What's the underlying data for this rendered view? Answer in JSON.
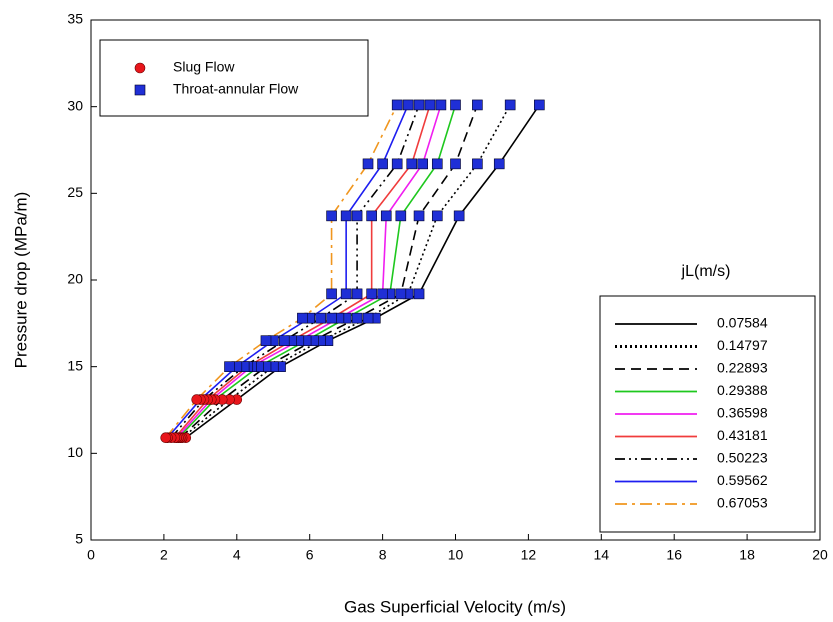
{
  "chart_data": {
    "type": "line",
    "x_label": "Gas Superficial Velocity (m/s)",
    "y_label": "Pressure drop (MPa/m)",
    "xlim": [
      0,
      20
    ],
    "xticks": [
      0,
      2,
      4,
      6,
      8,
      10,
      12,
      14,
      16,
      18,
      20
    ],
    "ylim": [
      5,
      35
    ],
    "yticks": [
      5,
      10,
      15,
      20,
      25,
      30,
      35
    ],
    "y": [
      10.9,
      13.1,
      15.0,
      16.5,
      17.8,
      19.2,
      23.7,
      26.7,
      30.1
    ],
    "markers": [
      {
        "name": "Slug Flow",
        "shape": "circle",
        "color": "#e8161b",
        "points": [
          0,
          1
        ]
      },
      {
        "name": "Throat-annular Flow",
        "shape": "square",
        "color": "#1f2fd6",
        "points": [
          2,
          3,
          4,
          5,
          6,
          7,
          8
        ]
      }
    ],
    "legend_title": "jL(m/s)",
    "series": [
      {
        "name": "0.07584",
        "color": "#000000",
        "dash": "solid",
        "values": [
          2.6,
          4.0,
          5.2,
          6.5,
          7.8,
          9.0,
          10.1,
          11.2,
          12.3
        ]
      },
      {
        "name": "0.14797",
        "color": "#000000",
        "dash": "dotted",
        "values": [
          2.5,
          3.8,
          5.0,
          6.3,
          7.6,
          8.7,
          9.5,
          10.6,
          11.5
        ]
      },
      {
        "name": "0.22893",
        "color": "#000000",
        "dash": "dashed",
        "values": [
          2.45,
          3.6,
          4.8,
          6.1,
          7.3,
          8.5,
          9.0,
          10.0,
          10.6
        ]
      },
      {
        "name": "0.29388",
        "color": "#1ec81e",
        "dash": "solid",
        "values": [
          2.4,
          3.4,
          4.6,
          5.9,
          7.0,
          8.2,
          8.5,
          9.5,
          10.0
        ]
      },
      {
        "name": "0.36598",
        "color": "#f01ef0",
        "dash": "solid",
        "values": [
          2.35,
          3.3,
          4.4,
          5.7,
          6.8,
          8.0,
          8.1,
          9.1,
          9.6
        ]
      },
      {
        "name": "0.43181",
        "color": "#f03c3c",
        "dash": "solid",
        "values": [
          2.3,
          3.2,
          4.3,
          5.5,
          6.6,
          7.7,
          7.7,
          8.8,
          9.3
        ]
      },
      {
        "name": "0.50223",
        "color": "#000000",
        "dash": "dashdotdot",
        "values": [
          2.2,
          3.1,
          4.2,
          5.3,
          6.3,
          7.3,
          7.3,
          8.4,
          9.0
        ]
      },
      {
        "name": "0.59562",
        "color": "#1e1ef0",
        "dash": "solid",
        "values": [
          2.1,
          3.0,
          4.0,
          5.0,
          6.0,
          7.0,
          7.0,
          8.0,
          8.7
        ]
      },
      {
        "name": "0.67053",
        "color": "#f0961e",
        "dash": "dashdot",
        "values": [
          2.05,
          2.9,
          3.8,
          4.8,
          5.8,
          6.6,
          6.6,
          7.6,
          8.4
        ]
      }
    ]
  }
}
